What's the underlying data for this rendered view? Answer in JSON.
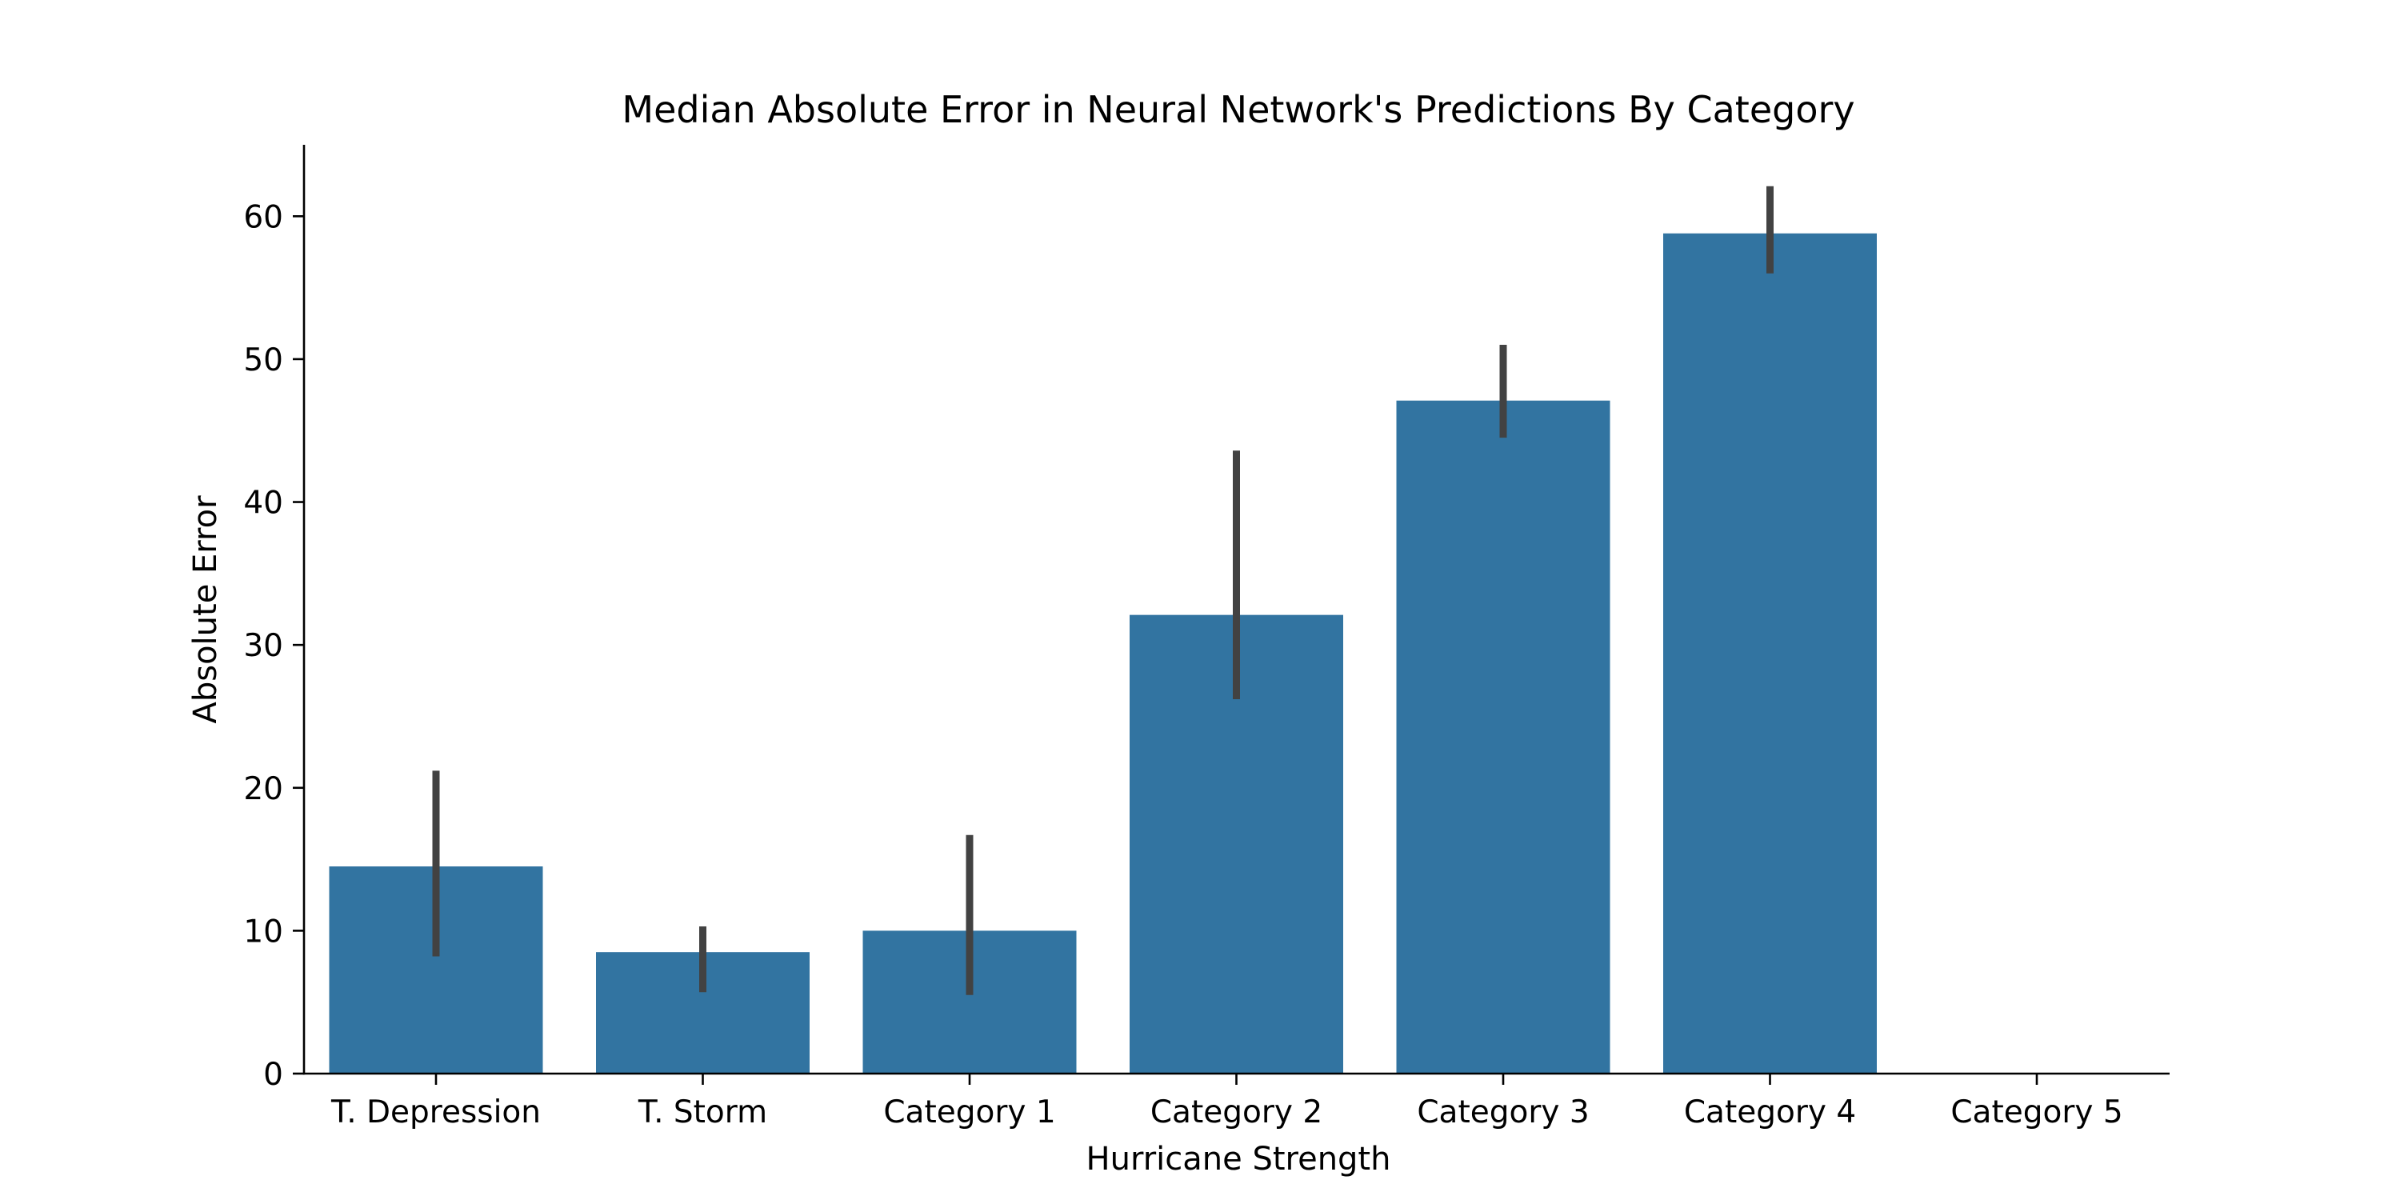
{
  "chart_data": {
    "type": "bar",
    "title": "Median Absolute Error in Neural Network's Predictions By Category",
    "xlabel": "Hurricane Strength",
    "ylabel": "Absolute Error",
    "categories": [
      "T. Depression",
      "T. Storm",
      "Category 1",
      "Category 2",
      "Category 3",
      "Category 4",
      "Category 5"
    ],
    "values": [
      14.5,
      8.5,
      10.0,
      32.1,
      47.1,
      58.8,
      null
    ],
    "error_bars": [
      {
        "low": 8.2,
        "high": 21.2
      },
      {
        "low": 5.7,
        "high": 10.3
      },
      {
        "low": 5.5,
        "high": 16.7
      },
      {
        "low": 26.2,
        "high": 43.6
      },
      {
        "low": 44.5,
        "high": 51.0
      },
      {
        "low": 56.0,
        "high": 62.1
      },
      null
    ],
    "yticks": [
      0,
      10,
      20,
      30,
      40,
      50,
      60
    ],
    "ylim": [
      0,
      65
    ],
    "grid": false,
    "colors": {
      "bar": "#3274a1",
      "error_bar": "#424242"
    }
  }
}
